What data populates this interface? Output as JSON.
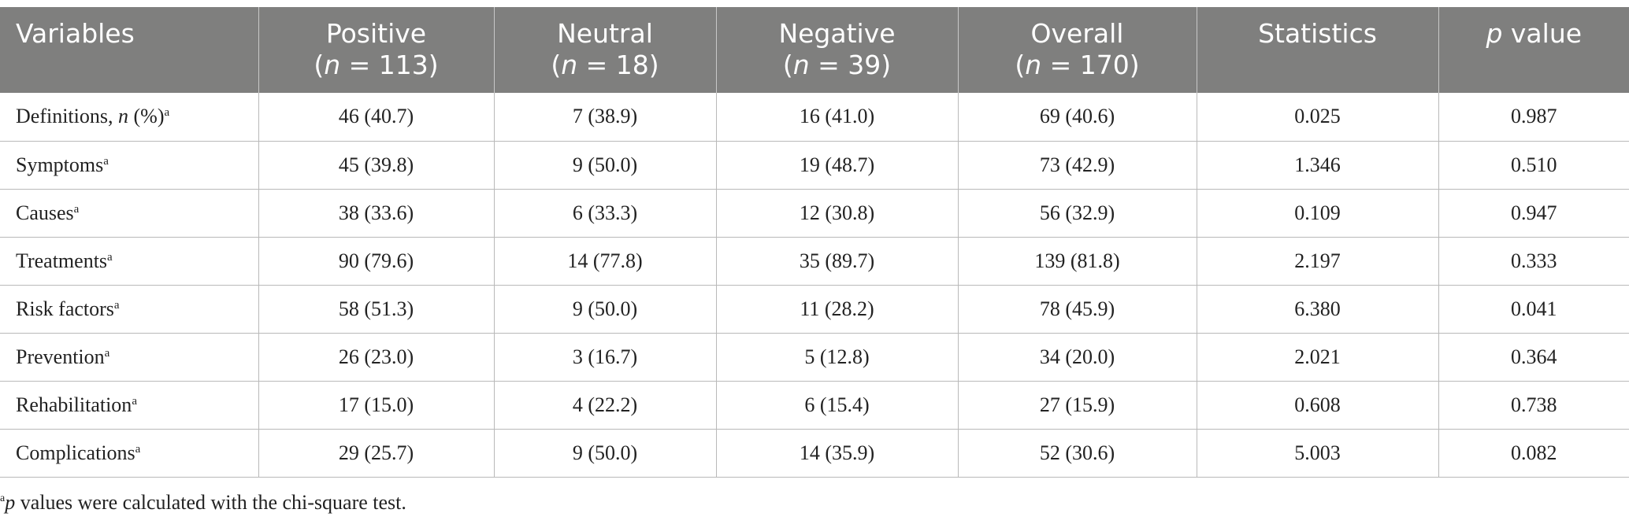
{
  "table": {
    "headers": {
      "variables": "Variables",
      "positive": {
        "label": "Positive",
        "n_label": "n",
        "n_value": " = 113)"
      },
      "neutral": {
        "label": "Neutral",
        "n_label": "n",
        "n_value": " = 18)"
      },
      "negative": {
        "label": "Negative",
        "n_label": "n",
        "n_value": " = 39)"
      },
      "overall": {
        "label": "Overall",
        "n_label": "n",
        "n_value": " = 170)"
      },
      "statistics": "Statistics",
      "pvalue": {
        "p": "p",
        "rest": " value"
      }
    },
    "rows": [
      {
        "label": "Definitions, ",
        "label_italic": "n",
        "label_suffix": " (%)",
        "sup": "a",
        "positive": "46 (40.7)",
        "neutral": "7 (38.9)",
        "negative": "16 (41.0)",
        "overall": "69 (40.6)",
        "statistics": "0.025",
        "p": "0.987"
      },
      {
        "label": "Symptoms",
        "sup": "a",
        "positive": "45 (39.8)",
        "neutral": "9 (50.0)",
        "negative": "19 (48.7)",
        "overall": "73 (42.9)",
        "statistics": "1.346",
        "p": "0.510"
      },
      {
        "label": "Causes",
        "sup": "a",
        "positive": "38 (33.6)",
        "neutral": "6 (33.3)",
        "negative": "12 (30.8)",
        "overall": "56 (32.9)",
        "statistics": "0.109",
        "p": "0.947"
      },
      {
        "label": "Treatments",
        "sup": "a",
        "positive": "90 (79.6)",
        "neutral": "14 (77.8)",
        "negative": "35 (89.7)",
        "overall": "139 (81.8)",
        "statistics": "2.197",
        "p": "0.333"
      },
      {
        "label": "Risk factors",
        "sup": "a",
        "positive": "58 (51.3)",
        "neutral": "9 (50.0)",
        "negative": "11 (28.2)",
        "overall": "78 (45.9)",
        "statistics": "6.380",
        "p": "0.041"
      },
      {
        "label": "Prevention",
        "sup": "a",
        "positive": "26 (23.0)",
        "neutral": "3 (16.7)",
        "negative": "5 (12.8)",
        "overall": "34 (20.0)",
        "statistics": "2.021",
        "p": "0.364"
      },
      {
        "label": "Rehabilitation",
        "sup": "a",
        "positive": "17 (15.0)",
        "neutral": "4 (22.2)",
        "negative": "6 (15.4)",
        "overall": "27 (15.9)",
        "statistics": "0.608",
        "p": "0.738"
      },
      {
        "label": "Complications",
        "sup": "a",
        "positive": "29 (25.7)",
        "neutral": "9 (50.0)",
        "negative": "14 (35.9)",
        "overall": "52 (30.6)",
        "statistics": "5.003",
        "p": "0.082"
      }
    ]
  },
  "footnote": {
    "sup": "a",
    "p": "p",
    "text": " values were calculated with the chi-square test."
  }
}
